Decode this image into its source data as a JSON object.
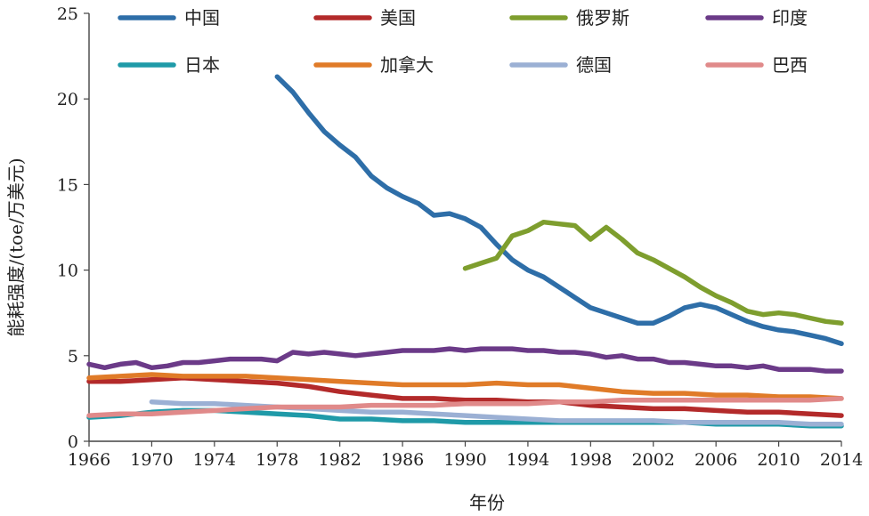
{
  "chart_data": {
    "type": "line",
    "title": "",
    "xlabel": "年份",
    "ylabel": "能耗强度/(toe/万美元)",
    "xlim": [
      1966,
      2014
    ],
    "ylim": [
      0,
      25
    ],
    "xticks": [
      1966,
      1970,
      1974,
      1978,
      1982,
      1986,
      1990,
      1994,
      1998,
      2002,
      2006,
      2010,
      2014
    ],
    "yticks": [
      0,
      5,
      10,
      15,
      20,
      25
    ],
    "grid": false,
    "legend": "top, 2 rows × 4 columns",
    "series": [
      {
        "name": "中国",
        "color": "#2e6ea8",
        "x": [
          1978,
          1979,
          1980,
          1981,
          1982,
          1983,
          1984,
          1985,
          1986,
          1987,
          1988,
          1989,
          1990,
          1991,
          1992,
          1993,
          1994,
          1995,
          1996,
          1997,
          1998,
          1999,
          2000,
          2001,
          2002,
          2003,
          2004,
          2005,
          2006,
          2007,
          2008,
          2009,
          2010,
          2011,
          2012,
          2013,
          2014
        ],
        "y": [
          21.3,
          20.4,
          19.2,
          18.1,
          17.3,
          16.6,
          15.5,
          14.8,
          14.3,
          13.9,
          13.2,
          13.3,
          13.0,
          12.5,
          11.5,
          10.6,
          10.0,
          9.6,
          9.0,
          8.4,
          7.8,
          7.5,
          7.2,
          6.9,
          6.9,
          7.3,
          7.8,
          8.0,
          7.8,
          7.4,
          7.0,
          6.7,
          6.5,
          6.4,
          6.2,
          6.0,
          5.7
        ]
      },
      {
        "name": "美国",
        "color": "#b32a2a",
        "x": [
          1966,
          1968,
          1970,
          1972,
          1974,
          1976,
          1978,
          1980,
          1982,
          1984,
          1986,
          1988,
          1990,
          1992,
          1994,
          1996,
          1998,
          2000,
          2002,
          2004,
          2006,
          2008,
          2010,
          2012,
          2014
        ],
        "y": [
          3.5,
          3.5,
          3.6,
          3.7,
          3.6,
          3.5,
          3.4,
          3.2,
          2.9,
          2.7,
          2.5,
          2.5,
          2.4,
          2.4,
          2.3,
          2.3,
          2.1,
          2.0,
          1.9,
          1.9,
          1.8,
          1.7,
          1.7,
          1.6,
          1.5
        ]
      },
      {
        "name": "俄罗斯",
        "color": "#7e9e2e",
        "x": [
          1990,
          1991,
          1992,
          1993,
          1994,
          1995,
          1996,
          1997,
          1998,
          1999,
          2000,
          2001,
          2002,
          2003,
          2004,
          2005,
          2006,
          2007,
          2008,
          2009,
          2010,
          2011,
          2012,
          2013,
          2014
        ],
        "y": [
          10.1,
          10.4,
          10.7,
          12.0,
          12.3,
          12.8,
          12.7,
          12.6,
          11.8,
          12.5,
          11.8,
          11.0,
          10.6,
          10.1,
          9.6,
          9.0,
          8.5,
          8.1,
          7.6,
          7.4,
          7.5,
          7.4,
          7.2,
          7.0,
          6.9
        ]
      },
      {
        "name": "印度",
        "color": "#6b3a88",
        "x": [
          1966,
          1967,
          1968,
          1969,
          1970,
          1971,
          1972,
          1973,
          1974,
          1975,
          1976,
          1977,
          1978,
          1979,
          1980,
          1981,
          1982,
          1983,
          1984,
          1985,
          1986,
          1987,
          1988,
          1989,
          1990,
          1991,
          1992,
          1993,
          1994,
          1995,
          1996,
          1997,
          1998,
          1999,
          2000,
          2001,
          2002,
          2003,
          2004,
          2005,
          2006,
          2007,
          2008,
          2009,
          2010,
          2011,
          2012,
          2013,
          2014
        ],
        "y": [
          4.5,
          4.3,
          4.5,
          4.6,
          4.3,
          4.4,
          4.6,
          4.6,
          4.7,
          4.8,
          4.8,
          4.8,
          4.7,
          5.2,
          5.1,
          5.2,
          5.1,
          5.0,
          5.1,
          5.2,
          5.3,
          5.3,
          5.3,
          5.4,
          5.3,
          5.4,
          5.4,
          5.4,
          5.3,
          5.3,
          5.2,
          5.2,
          5.1,
          4.9,
          5.0,
          4.8,
          4.8,
          4.6,
          4.6,
          4.5,
          4.4,
          4.4,
          4.3,
          4.4,
          4.2,
          4.2,
          4.2,
          4.1,
          4.1
        ]
      },
      {
        "name": "日本",
        "color": "#1f9aa8",
        "x": [
          1966,
          1968,
          1970,
          1972,
          1974,
          1976,
          1978,
          1980,
          1982,
          1984,
          1986,
          1988,
          1990,
          1992,
          1994,
          1996,
          1998,
          2000,
          2002,
          2004,
          2006,
          2008,
          2010,
          2012,
          2014
        ],
        "y": [
          1.4,
          1.5,
          1.7,
          1.8,
          1.8,
          1.7,
          1.6,
          1.5,
          1.3,
          1.3,
          1.2,
          1.2,
          1.1,
          1.1,
          1.1,
          1.1,
          1.1,
          1.1,
          1.1,
          1.1,
          1.0,
          1.0,
          1.0,
          0.9,
          0.9
        ]
      },
      {
        "name": "加拿大",
        "color": "#e07b28",
        "x": [
          1966,
          1968,
          1970,
          1972,
          1974,
          1976,
          1978,
          1980,
          1982,
          1984,
          1986,
          1988,
          1990,
          1992,
          1994,
          1996,
          1998,
          2000,
          2002,
          2004,
          2006,
          2008,
          2010,
          2012,
          2014
        ],
        "y": [
          3.7,
          3.8,
          3.9,
          3.8,
          3.8,
          3.8,
          3.7,
          3.6,
          3.5,
          3.4,
          3.3,
          3.3,
          3.3,
          3.4,
          3.3,
          3.3,
          3.1,
          2.9,
          2.8,
          2.8,
          2.7,
          2.7,
          2.6,
          2.6,
          2.5
        ]
      },
      {
        "name": "德国",
        "color": "#9bb0d4",
        "x": [
          1970,
          1972,
          1974,
          1976,
          1978,
          1980,
          1982,
          1984,
          1986,
          1988,
          1990,
          1992,
          1994,
          1996,
          1998,
          2000,
          2002,
          2004,
          2006,
          2008,
          2010,
          2012,
          2014
        ],
        "y": [
          2.3,
          2.2,
          2.2,
          2.1,
          2.0,
          1.9,
          1.8,
          1.7,
          1.7,
          1.6,
          1.5,
          1.4,
          1.3,
          1.2,
          1.2,
          1.2,
          1.2,
          1.1,
          1.1,
          1.1,
          1.1,
          1.0,
          1.0
        ]
      },
      {
        "name": "巴西",
        "color": "#e08a8a",
        "x": [
          1966,
          1968,
          1970,
          1972,
          1974,
          1976,
          1978,
          1980,
          1982,
          1984,
          1986,
          1988,
          1990,
          1992,
          1994,
          1996,
          1998,
          2000,
          2002,
          2004,
          2006,
          2008,
          2010,
          2012,
          2014
        ],
        "y": [
          1.5,
          1.6,
          1.6,
          1.7,
          1.8,
          1.9,
          2.0,
          2.0,
          2.0,
          2.1,
          2.1,
          2.1,
          2.2,
          2.2,
          2.2,
          2.3,
          2.3,
          2.4,
          2.4,
          2.4,
          2.4,
          2.4,
          2.4,
          2.4,
          2.5
        ]
      }
    ]
  }
}
